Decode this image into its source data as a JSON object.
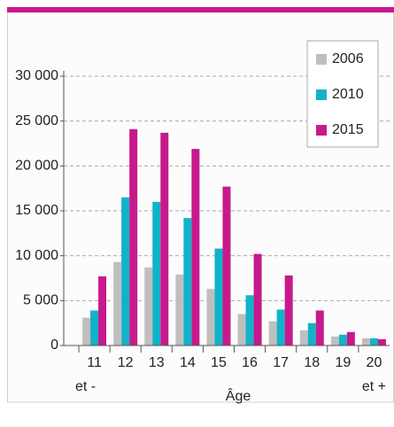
{
  "chart_data": {
    "type": "bar",
    "categories": [
      "11",
      "12",
      "13",
      "14",
      "15",
      "16",
      "17",
      "18",
      "19",
      "20"
    ],
    "annotations": [
      "et -",
      "et +"
    ],
    "x_label": "Âge",
    "series": [
      {
        "name": "2006",
        "color": "#bfbfbf",
        "values": [
          3100,
          9300,
          8700,
          7900,
          6300,
          3500,
          2700,
          1700,
          1000,
          800
        ]
      },
      {
        "name": "2010",
        "color": "#12b2c9",
        "values": [
          3900,
          16500,
          16000,
          14200,
          10800,
          5600,
          4000,
          2500,
          1200,
          800
        ]
      },
      {
        "name": "2015",
        "color": "#c8198c",
        "values": [
          7700,
          24100,
          23700,
          21900,
          17700,
          10200,
          7800,
          3900,
          1500,
          700
        ]
      }
    ],
    "ylim": [
      0,
      30000
    ],
    "yticks": [
      0,
      {
        "value": 5000,
        "label": "5 000"
      },
      {
        "value": 10000,
        "label": "10 000"
      },
      {
        "value": 15000,
        "label": "15 000"
      },
      {
        "value": 20000,
        "label": "20 000"
      },
      {
        "value": 25000,
        "label": "25 000"
      },
      {
        "value": 30000,
        "label": "30 000"
      }
    ],
    "grid": true,
    "legend": "top-right"
  }
}
